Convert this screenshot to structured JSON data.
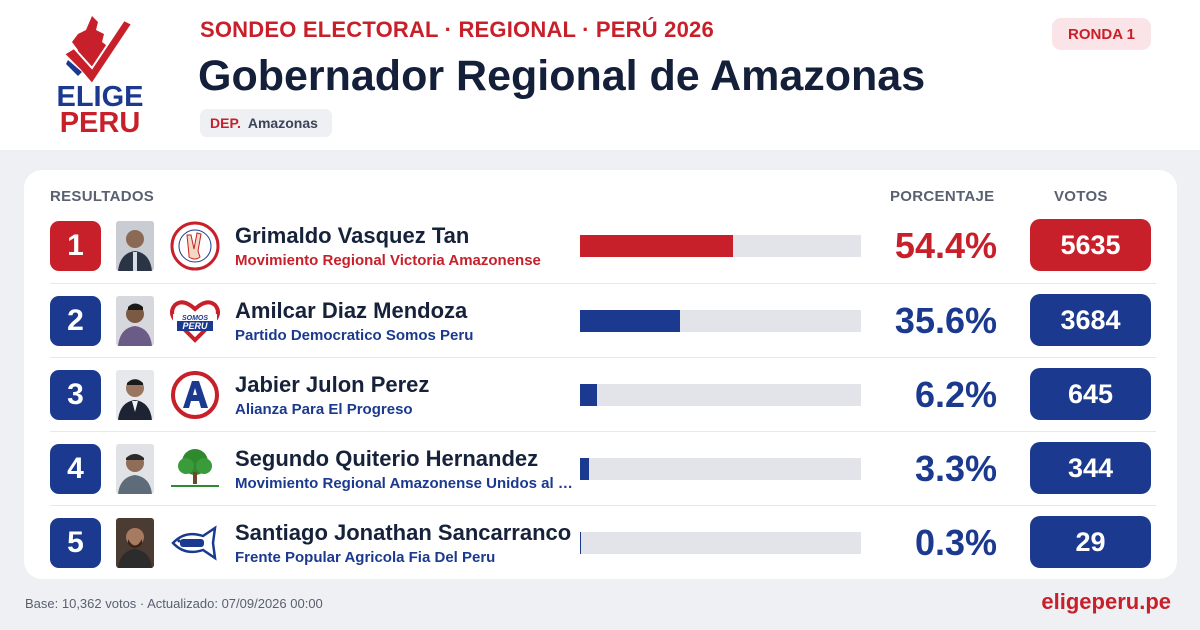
{
  "brand": {
    "logo_line1": "ELIGE",
    "logo_line2": "PERU",
    "red": "#c8202a",
    "blue": "#1b3a8f",
    "site": "eligeperu.pe"
  },
  "header": {
    "kicker": "SONDEO ELECTORAL · REGIONAL · PERÚ 2026",
    "title": "Gobernador Regional de Amazonas",
    "dep_key": "DEP.",
    "dep_value": "Amazonas",
    "round": "RONDA 1"
  },
  "table": {
    "col_results": "RESULTADOS",
    "col_percent": "PORCENTAJE",
    "col_votes": "VOTOS",
    "rows": [
      {
        "rank": "1",
        "name": "Grimaldo Vasquez Tan",
        "party": "Movimiento Regional Victoria Amazonense",
        "percent_label": "54.4%",
        "percent": 54.4,
        "votes": "5635",
        "accent": "#c8202a",
        "party_logo": "victory-hand-logo"
      },
      {
        "rank": "2",
        "name": "Amilcar Diaz Mendoza",
        "party": "Partido Democratico Somos Peru",
        "percent_label": "35.6%",
        "percent": 35.6,
        "votes": "3684",
        "accent": "#1b3a8f",
        "party_logo": "heart-logo"
      },
      {
        "rank": "3",
        "name": "Jabier Julon Perez",
        "party": "Alianza Para El Progreso",
        "percent_label": "6.2%",
        "percent": 6.2,
        "votes": "645",
        "accent": "#1b3a8f",
        "party_logo": "letter-a-logo"
      },
      {
        "rank": "4",
        "name": "Segundo Quiterio Hernandez",
        "party": "Movimiento Regional Amazonense Unidos al Campo",
        "percent_label": "3.3%",
        "percent": 3.3,
        "votes": "344",
        "accent": "#1b3a8f",
        "party_logo": "tree-logo"
      },
      {
        "rank": "5",
        "name": "Santiago Jonathan Sancarranco",
        "party": "Frente Popular Agricola Fia Del Peru",
        "percent_label": "0.3%",
        "percent": 0.3,
        "votes": "29",
        "accent": "#1b3a8f",
        "party_logo": "fish-logo"
      }
    ]
  },
  "footer": {
    "base": "Base: 10,362 votos · Actualizado: 07/09/2026 00:00",
    "site": "eligeperu.pe"
  }
}
